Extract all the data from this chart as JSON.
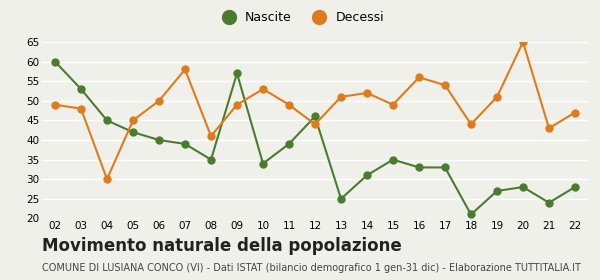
{
  "years": [
    "02",
    "03",
    "04",
    "05",
    "06",
    "07",
    "08",
    "09",
    "10",
    "11",
    "12",
    "13",
    "14",
    "15",
    "16",
    "17",
    "18",
    "19",
    "20",
    "21",
    "22"
  ],
  "nascite": [
    60,
    53,
    45,
    42,
    40,
    39,
    35,
    57,
    34,
    39,
    46,
    25,
    31,
    35,
    33,
    33,
    21,
    27,
    28,
    24,
    28
  ],
  "decessi": [
    49,
    48,
    30,
    45,
    50,
    58,
    41,
    49,
    53,
    49,
    44,
    51,
    52,
    49,
    56,
    54,
    44,
    51,
    65,
    43,
    47
  ],
  "nascite_color": "#4a7c2f",
  "decessi_color": "#e07b1a",
  "background_color": "#f0f0eb",
  "grid_color": "#ffffff",
  "ylim": [
    20,
    65
  ],
  "yticks": [
    20,
    25,
    30,
    35,
    40,
    45,
    50,
    55,
    60,
    65
  ],
  "title": "Movimento naturale della popolazione",
  "subtitle": "COMUNE DI LUSIANA CONCO (VI) - Dati ISTAT (bilancio demografico 1 gen-31 dic) - Elaborazione TUTTITALIA.IT",
  "legend_nascite": "Nascite",
  "legend_decessi": "Decessi",
  "title_fontsize": 12,
  "subtitle_fontsize": 7,
  "marker_size": 5,
  "linewidth": 1.5
}
